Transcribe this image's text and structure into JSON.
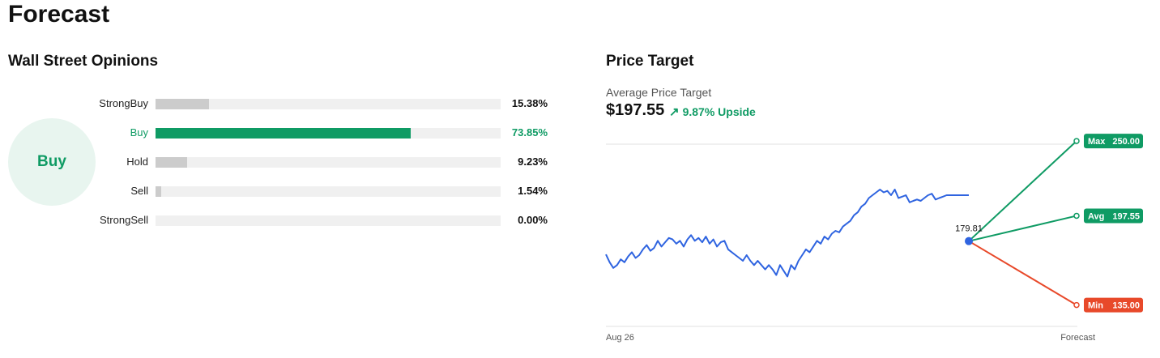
{
  "page": {
    "title": "Forecast"
  },
  "opinions": {
    "title": "Wall Street Opinions",
    "consensus": "Buy",
    "ratings": [
      {
        "label": "StrongBuy",
        "percent": 15.38,
        "percent_label": "15.38%",
        "active": false
      },
      {
        "label": "Buy",
        "percent": 73.85,
        "percent_label": "73.85%",
        "active": true
      },
      {
        "label": "Hold",
        "percent": 9.23,
        "percent_label": "9.23%",
        "active": false
      },
      {
        "label": "Sell",
        "percent": 1.54,
        "percent_label": "1.54%",
        "active": false
      },
      {
        "label": "StrongSell",
        "percent": 0.0,
        "percent_label": "0.00%",
        "active": false
      }
    ],
    "colors": {
      "active": "#0f9b64",
      "inactive": "#cccccc",
      "track": "#f0f0f0"
    }
  },
  "price_target": {
    "title": "Price Target",
    "average_label": "Average Price Target",
    "average_value": "$197.55",
    "upside_icon": "arrow-up-right-icon",
    "upside_text": "9.87% Upside"
  },
  "chart_data": {
    "type": "line",
    "x_start_label": "Aug 26",
    "x_end_label": "Forecast",
    "ylim": [
      120,
      258
    ],
    "grid": "top-line",
    "last_price": 179.81,
    "last_price_label": "179.81",
    "series": [
      {
        "color": "#2f64e0",
        "values": [
          170.5,
          165,
          161,
          163,
          167,
          165,
          169,
          172,
          168,
          170,
          174,
          177,
          173,
          175,
          180,
          176,
          179,
          182,
          181,
          178,
          180,
          176,
          181,
          184,
          180,
          182,
          179,
          183,
          178,
          181,
          176,
          179,
          180,
          174,
          172,
          170,
          168,
          166,
          170,
          166,
          163,
          166,
          163,
          160,
          163,
          160,
          156,
          163,
          159,
          155,
          163,
          160,
          166,
          170,
          174,
          172,
          176,
          180,
          178,
          183,
          181,
          185,
          187,
          186,
          190,
          192,
          194,
          198,
          200,
          204,
          206,
          210,
          212,
          214,
          216,
          214,
          215,
          212,
          216,
          210,
          211,
          212,
          207,
          208,
          209,
          208,
          210,
          212,
          213,
          209,
          210,
          211,
          212,
          212,
          212,
          212,
          212,
          212,
          212
        ]
      }
    ],
    "targets": [
      {
        "label": "Max",
        "value": 250.0,
        "value_label": "250.00",
        "color": "#0f9b64"
      },
      {
        "label": "Avg",
        "value": 197.55,
        "value_label": "197.55",
        "color": "#0f9b64"
      },
      {
        "label": "Min",
        "value": 135.0,
        "value_label": "135.00",
        "color": "#e8492a"
      }
    ]
  }
}
